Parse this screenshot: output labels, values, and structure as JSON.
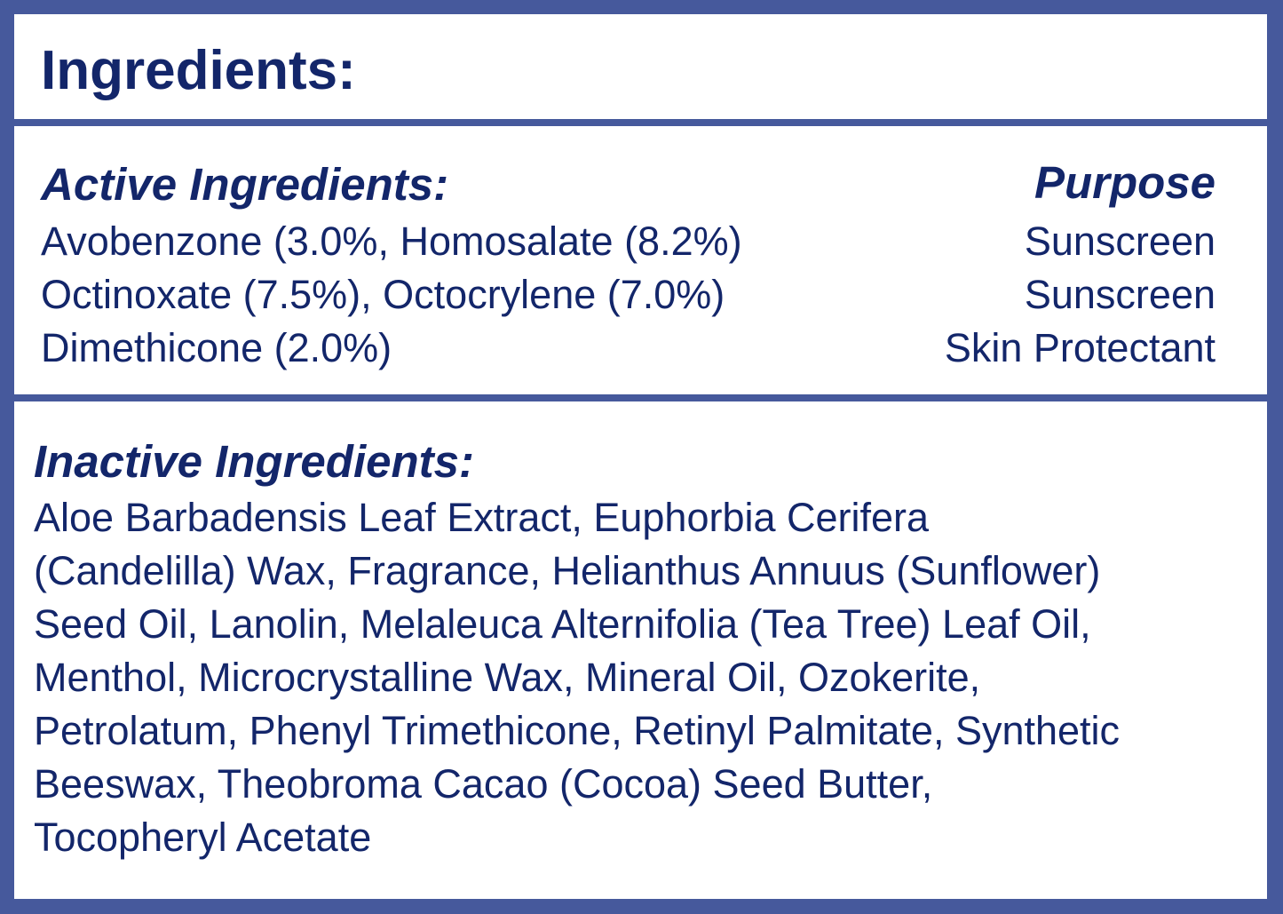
{
  "title": "Ingredients:",
  "active": {
    "heading": "Active Ingredients:",
    "purpose_heading": "Purpose",
    "rows": [
      {
        "ingredients": "Avobenzone (3.0%, Homosalate (8.2%)",
        "purpose": "Sunscreen"
      },
      {
        "ingredients": "Octinoxate (7.5%), Octocrylene (7.0%)",
        "purpose": "Sunscreen"
      },
      {
        "ingredients": "Dimethicone (2.0%)",
        "purpose": "Skin Protectant"
      }
    ]
  },
  "inactive": {
    "heading": "Inactive Ingredients:",
    "lines": [
      "Aloe Barbadensis Leaf Extract, Euphorbia Cerifera",
      "(Candelilla) Wax, Fragrance, Helianthus Annuus (Sunflower)",
      "Seed Oil, Lanolin, Melaleuca Alternifolia (Tea Tree) Leaf Oil,",
      "Menthol, Microcrystalline Wax, Mineral Oil, Ozokerite,",
      "Petrolatum, Phenyl Trimethicone, Retinyl Palmitate, Synthetic",
      "Beeswax, Theobroma Cacao (Cocoa) Seed Butter,",
      "Tocopheryl Acetate"
    ]
  },
  "colors": {
    "border": "#46599c",
    "text": "#13266a"
  }
}
